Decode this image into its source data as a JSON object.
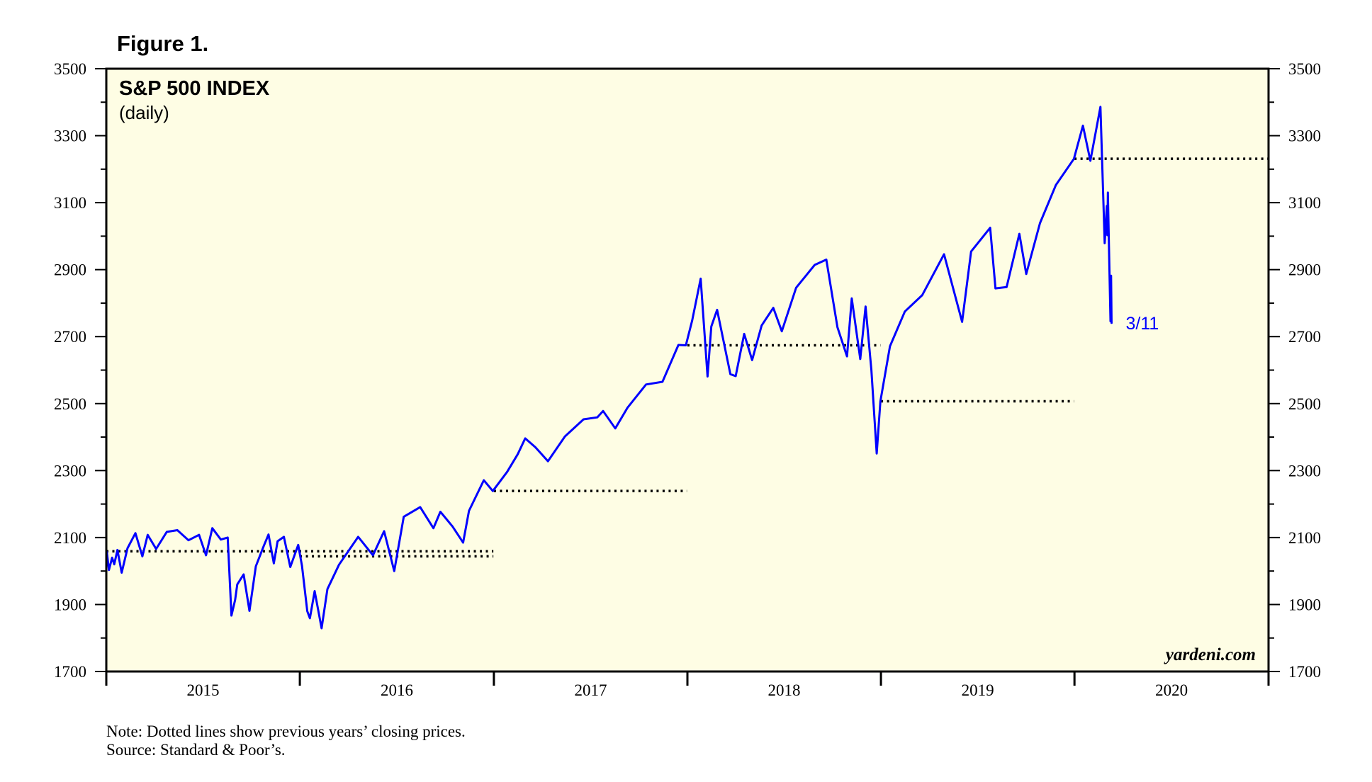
{
  "figure_label": "Figure 1.",
  "chart_data": {
    "type": "line",
    "title": "S&P 500 INDEX",
    "subtitle": "(daily)",
    "watermark": "yardeni.com",
    "ylim": [
      1700,
      3500
    ],
    "yticks": [
      1700,
      1900,
      2100,
      2300,
      2500,
      2700,
      2900,
      3100,
      3300,
      3500
    ],
    "xlim": [
      "2015-01-01",
      "2021-01-01"
    ],
    "year_labels": [
      "2015",
      "2016",
      "2017",
      "2018",
      "2019",
      "2020"
    ],
    "plot_background": "#fefde4",
    "line_color": "#0000ff",
    "end_annotation": "3/11",
    "series": [
      {
        "values": [
          [
            "2015-01-02",
            2058
          ],
          [
            "2015-01-06",
            2003
          ],
          [
            "2015-01-12",
            2040
          ],
          [
            "2015-01-16",
            2020
          ],
          [
            "2015-01-22",
            2063
          ],
          [
            "2015-01-30",
            1995
          ],
          [
            "2015-02-10",
            2068
          ],
          [
            "2015-02-25",
            2113
          ],
          [
            "2015-03-10",
            2044
          ],
          [
            "2015-03-20",
            2108
          ],
          [
            "2015-04-05",
            2066
          ],
          [
            "2015-04-25",
            2117
          ],
          [
            "2015-05-15",
            2122
          ],
          [
            "2015-06-05",
            2092
          ],
          [
            "2015-06-25",
            2108
          ],
          [
            "2015-07-08",
            2047
          ],
          [
            "2015-07-20",
            2128
          ],
          [
            "2015-08-05",
            2094
          ],
          [
            "2015-08-18",
            2100
          ],
          [
            "2015-08-25",
            1867
          ],
          [
            "2015-09-01",
            1914
          ],
          [
            "2015-09-05",
            1960
          ],
          [
            "2015-09-17",
            1990
          ],
          [
            "2015-09-28",
            1881
          ],
          [
            "2015-10-10",
            2014
          ],
          [
            "2015-10-25",
            2075
          ],
          [
            "2015-11-03",
            2109
          ],
          [
            "2015-11-13",
            2023
          ],
          [
            "2015-11-20",
            2089
          ],
          [
            "2015-12-02",
            2102
          ],
          [
            "2015-12-14",
            2012
          ],
          [
            "2015-12-29",
            2078
          ],
          [
            "2016-01-05",
            2016
          ],
          [
            "2016-01-15",
            1880
          ],
          [
            "2016-01-20",
            1859
          ],
          [
            "2016-01-29",
            1940
          ],
          [
            "2016-02-11",
            1829
          ],
          [
            "2016-02-22",
            1946
          ],
          [
            "2016-03-15",
            2019
          ],
          [
            "2016-04-20",
            2102
          ],
          [
            "2016-05-18",
            2047
          ],
          [
            "2016-06-08",
            2119
          ],
          [
            "2016-06-27",
            2000
          ],
          [
            "2016-07-15",
            2162
          ],
          [
            "2016-08-15",
            2191
          ],
          [
            "2016-09-09",
            2128
          ],
          [
            "2016-09-22",
            2177
          ],
          [
            "2016-10-15",
            2133
          ],
          [
            "2016-11-04",
            2085
          ],
          [
            "2016-11-15",
            2180
          ],
          [
            "2016-12-13",
            2271
          ],
          [
            "2016-12-30",
            2239
          ],
          [
            "2017-01-26",
            2296
          ],
          [
            "2017-02-15",
            2349
          ],
          [
            "2017-03-01",
            2396
          ],
          [
            "2017-03-20",
            2370
          ],
          [
            "2017-04-13",
            2328
          ],
          [
            "2017-05-15",
            2402
          ],
          [
            "2017-06-19",
            2453
          ],
          [
            "2017-07-15",
            2459
          ],
          [
            "2017-07-26",
            2478
          ],
          [
            "2017-08-18",
            2426
          ],
          [
            "2017-09-10",
            2488
          ],
          [
            "2017-10-15",
            2557
          ],
          [
            "2017-11-15",
            2565
          ],
          [
            "2017-12-15",
            2675
          ],
          [
            "2017-12-29",
            2674
          ],
          [
            "2018-01-10",
            2748
          ],
          [
            "2018-01-26",
            2873
          ],
          [
            "2018-02-08",
            2581
          ],
          [
            "2018-02-15",
            2730
          ],
          [
            "2018-02-26",
            2780
          ],
          [
            "2018-03-23",
            2588
          ],
          [
            "2018-04-02",
            2582
          ],
          [
            "2018-04-18",
            2708
          ],
          [
            "2018-05-03",
            2630
          ],
          [
            "2018-05-21",
            2733
          ],
          [
            "2018-06-12",
            2786
          ],
          [
            "2018-06-28",
            2716
          ],
          [
            "2018-07-25",
            2846
          ],
          [
            "2018-08-29",
            2914
          ],
          [
            "2018-09-20",
            2930
          ],
          [
            "2018-10-11",
            2728
          ],
          [
            "2018-10-29",
            2641
          ],
          [
            "2018-11-07",
            2814
          ],
          [
            "2018-11-23",
            2633
          ],
          [
            "2018-12-03",
            2790
          ],
          [
            "2018-12-14",
            2600
          ],
          [
            "2018-12-24",
            2351
          ],
          [
            "2018-12-31",
            2507
          ],
          [
            "2019-01-18",
            2671
          ],
          [
            "2019-02-15",
            2775
          ],
          [
            "2019-03-20",
            2824
          ],
          [
            "2019-04-30",
            2946
          ],
          [
            "2019-06-03",
            2744
          ],
          [
            "2019-06-20",
            2954
          ],
          [
            "2019-07-26",
            3025
          ],
          [
            "2019-08-05",
            2844
          ],
          [
            "2019-08-26",
            2848
          ],
          [
            "2019-09-19",
            3007
          ],
          [
            "2019-10-02",
            2887
          ],
          [
            "2019-10-28",
            3039
          ],
          [
            "2019-11-27",
            3153
          ],
          [
            "2019-12-31",
            3231
          ],
          [
            "2020-01-17",
            3330
          ],
          [
            "2020-01-31",
            3225
          ],
          [
            "2020-02-19",
            3386
          ],
          [
            "2020-02-27",
            2979
          ],
          [
            "2020-03-02",
            3090
          ],
          [
            "2020-03-03",
            3003
          ],
          [
            "2020-03-04",
            3130
          ],
          [
            "2020-03-06",
            2972
          ],
          [
            "2020-03-09",
            2746
          ],
          [
            "2020-03-10",
            2882
          ],
          [
            "2020-03-11",
            2741
          ]
        ]
      }
    ],
    "reference_lines": [
      {
        "value": 2059,
        "from": "2015-01-01",
        "to": "2016-12-31"
      },
      {
        "value": 2044,
        "from": "2016-01-01",
        "to": "2016-12-31"
      },
      {
        "value": 2239,
        "from": "2017-01-01",
        "to": "2017-12-31"
      },
      {
        "value": 2674,
        "from": "2018-01-01",
        "to": "2018-12-31"
      },
      {
        "value": 2507,
        "from": "2019-01-01",
        "to": "2019-12-31"
      },
      {
        "value": 3231,
        "from": "2020-01-01",
        "to": "2020-12-31"
      }
    ],
    "reference_color": "#000000"
  },
  "note": "Note: Dotted lines show previous years’ closing prices.",
  "source": "Source: Standard & Poor’s."
}
